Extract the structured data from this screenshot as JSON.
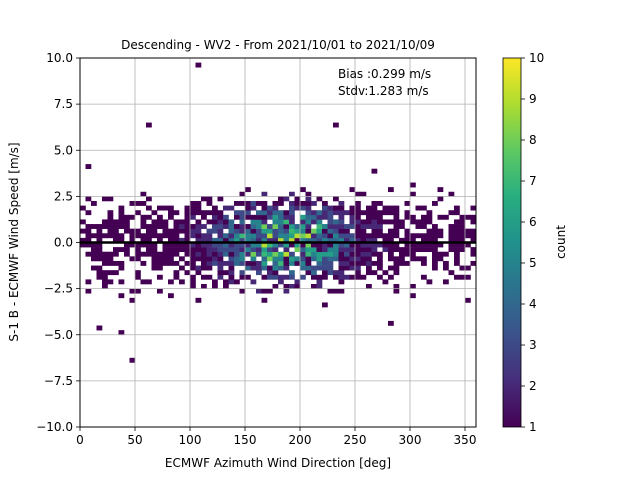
{
  "chart_data": {
    "type": "heatmap",
    "title": "Descending - WV2 - From 2021/10/01 to 2021/10/09",
    "xlabel": "ECMWF Azimuth Wind Direction [deg]",
    "ylabel": "S-1 B - ECMWF Wind Speed [m/s]",
    "xlim": [
      0,
      360
    ],
    "ylim": [
      -10,
      10
    ],
    "x_ticks": [
      "0",
      "50",
      "100",
      "150",
      "200",
      "250",
      "300",
      "350"
    ],
    "y_ticks": [
      "−10.0",
      "−7.5",
      "−5.0",
      "−2.5",
      "0.0",
      "2.5",
      "5.0",
      "7.5",
      "10.0"
    ],
    "grid": true,
    "bin_size": {
      "direction_deg": 5,
      "speed_ms": 0.25
    },
    "annotations": [
      "Bias :0.299 m/s",
      "Stdv:1.283 m/s"
    ],
    "mean_line": {
      "direction_deg": [
        0,
        360
      ],
      "speed_ms": [
        0.0,
        0.0
      ]
    },
    "colorbar": {
      "label": "count",
      "range": [
        1,
        10
      ],
      "ticks": [
        "1",
        "2",
        "3",
        "4",
        "5",
        "6",
        "7",
        "8",
        "9",
        "10"
      ],
      "colormap": "viridis"
    },
    "colors": [
      "#440154",
      "#472d7b",
      "#3b528b",
      "#2c728e",
      "#21918c",
      "#28ae80",
      "#5ec962",
      "#addc30",
      "#fde725"
    ],
    "outlier_points": [
      {
        "direction_deg": 108,
        "speed_ms": 9.5,
        "count": 1
      },
      {
        "direction_deg": 62,
        "speed_ms": 6.3,
        "count": 1
      },
      {
        "direction_deg": 232,
        "speed_ms": 6.4,
        "count": 1
      },
      {
        "direction_deg": 45,
        "speed_ms": -6.5,
        "count": 1
      },
      {
        "direction_deg": 8,
        "speed_ms": 4.2,
        "count": 1
      },
      {
        "direction_deg": 15,
        "speed_ms": -4.7,
        "count": 1
      },
      {
        "direction_deg": 35,
        "speed_ms": -4.8,
        "count": 1
      },
      {
        "direction_deg": 282,
        "speed_ms": -4.3,
        "count": 1
      },
      {
        "direction_deg": 302,
        "speed_ms": 3.2,
        "count": 1
      },
      {
        "direction_deg": 265,
        "speed_ms": 3.8,
        "count": 1
      }
    ]
  }
}
